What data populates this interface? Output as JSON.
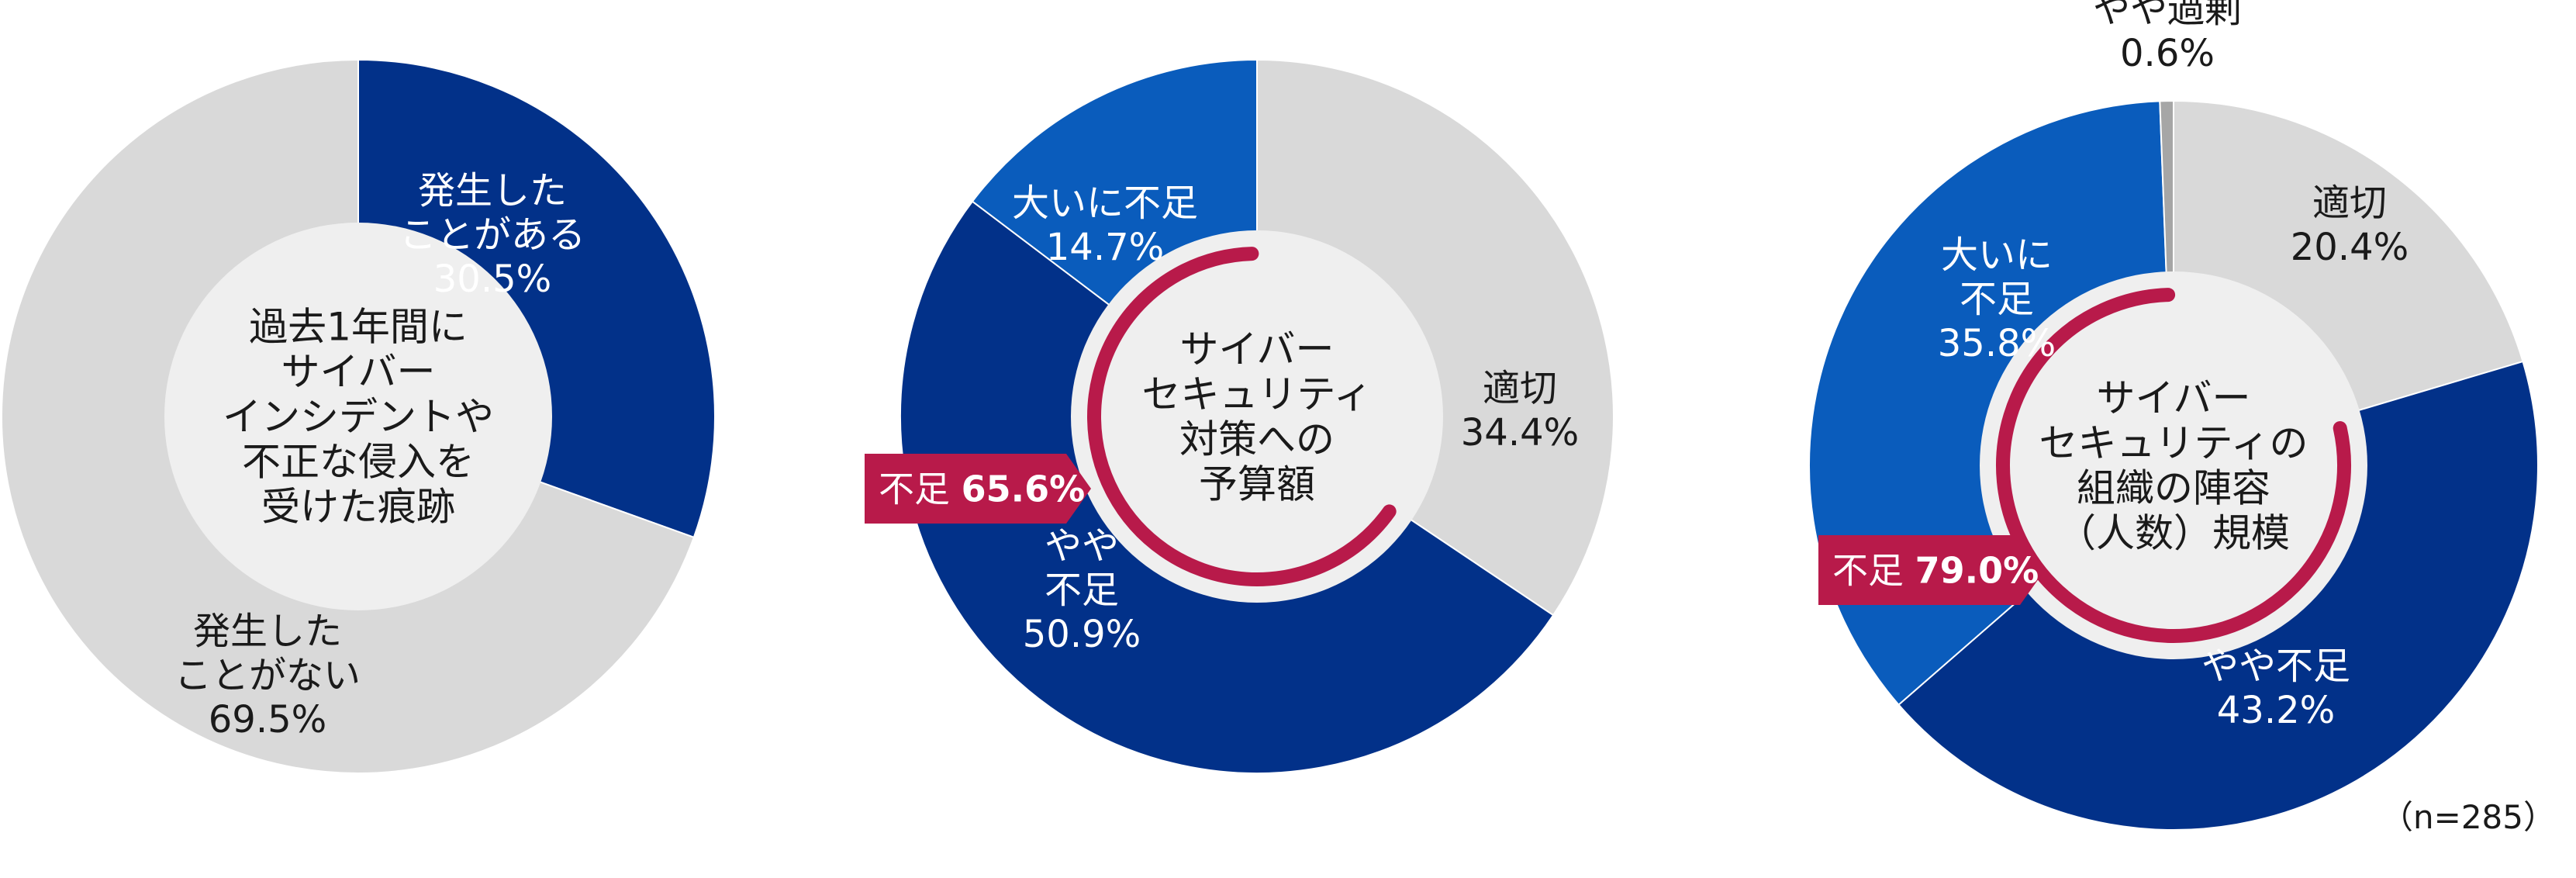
{
  "chart_data": [
    {
      "type": "pie",
      "variant": "donut",
      "center_label": "過去1年間に\nサイバー\nインシデントや\n不正な侵入を\n受けた痕跡",
      "slices": [
        {
          "label": "発生した\nことがある",
          "value": 30.5,
          "value_label": "30.5%",
          "color": "#023189"
        },
        {
          "label": "発生した\nことがない",
          "value": 69.5,
          "value_label": "69.5%",
          "color": "#d9d9d9"
        }
      ]
    },
    {
      "type": "pie",
      "variant": "donut",
      "center_label": "サイバー\nセキュリティ\n対策への\n予算額",
      "slices": [
        {
          "label": "適切",
          "value": 34.4,
          "value_label": "34.4%",
          "color": "#d9d9d9"
        },
        {
          "label": "やや\n不足",
          "value": 50.9,
          "value_label": "50.9%",
          "color": "#023189"
        },
        {
          "label": "大いに不足",
          "value": 14.7,
          "value_label": "14.7%",
          "color": "#0a5cbc"
        }
      ],
      "summary": {
        "label": "不足",
        "value": 65.6,
        "value_label": "65.6%",
        "color": "#b81a4a"
      }
    },
    {
      "type": "pie",
      "variant": "donut",
      "center_label": "サイバー\nセキュリティの\n組織の陣容\n（人数）規模",
      "slices": [
        {
          "label": "適切",
          "value": 20.4,
          "value_label": "20.4%",
          "color": "#d9d9d9"
        },
        {
          "label": "やや不足",
          "value": 43.2,
          "value_label": "43.2%",
          "color": "#023189"
        },
        {
          "label": "大いに\n不足",
          "value": 35.8,
          "value_label": "35.8%",
          "color": "#0a5cbc"
        },
        {
          "label": "やや過剰",
          "value": 0.6,
          "value_label": "0.6%",
          "color": "#a6a6a6"
        }
      ],
      "summary": {
        "label": "不足",
        "value": 79.0,
        "value_label": "79.0%",
        "color": "#b81a4a"
      }
    }
  ],
  "footnote": "（n=285）",
  "colors": {
    "center_fill": "#efefef",
    "text": "#1a1a1a",
    "text_on_dark": "#ffffff"
  }
}
